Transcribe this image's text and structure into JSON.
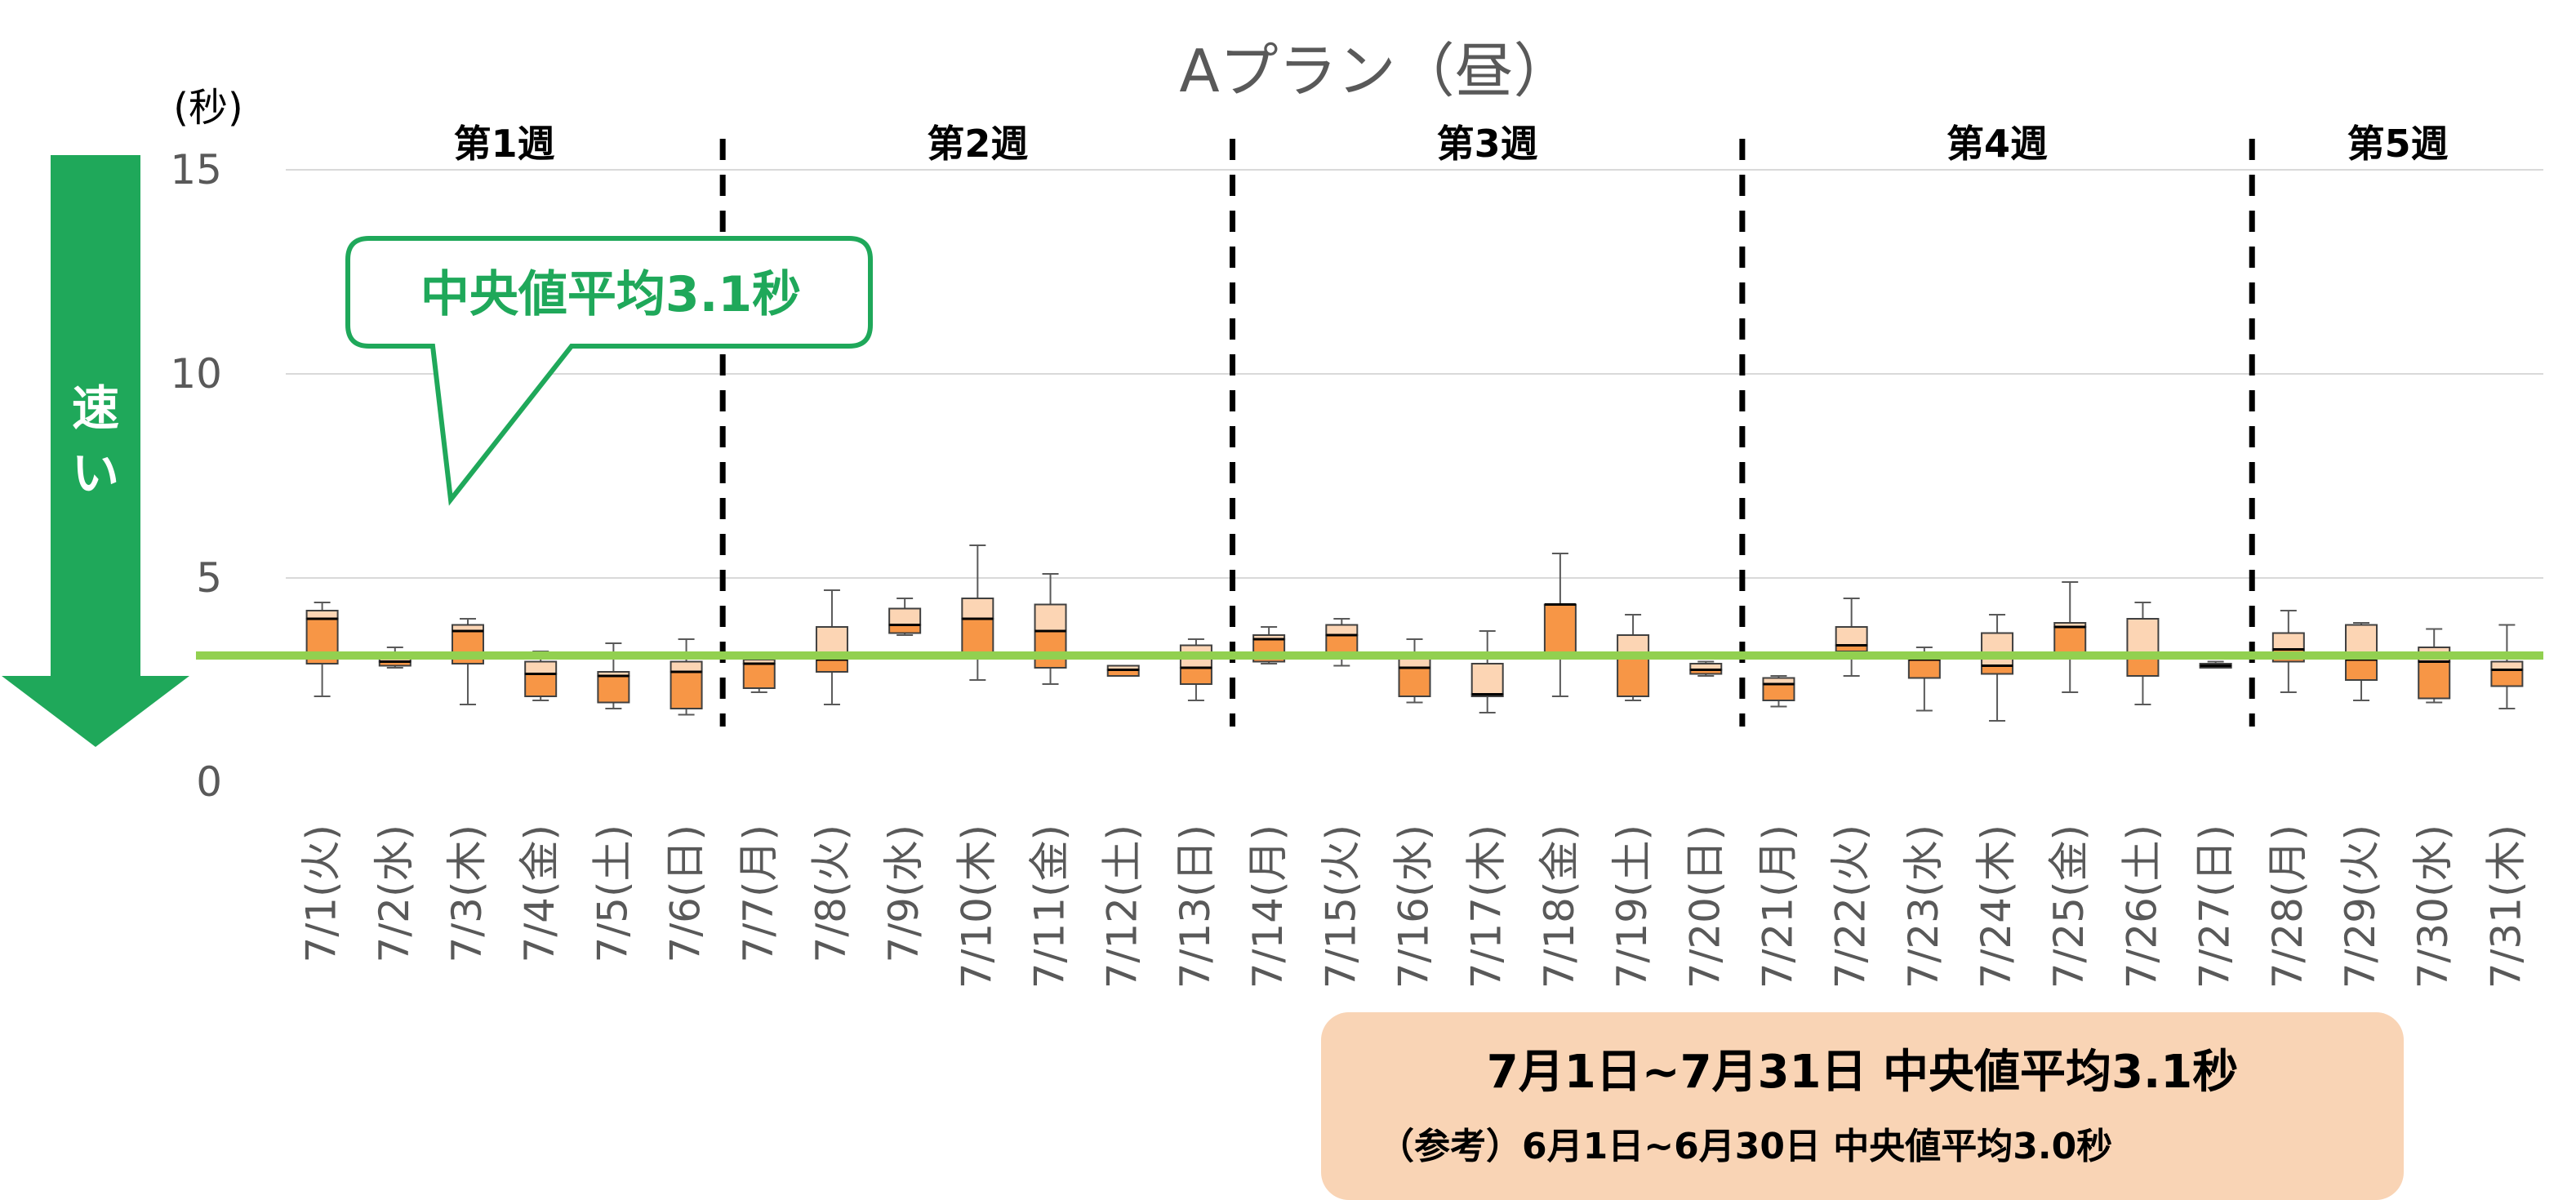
{
  "chart_data": {
    "type": "box",
    "title": "Aプラン（昼）",
    "ylabel": "(秒)",
    "ylim": [
      0,
      15
    ],
    "yticks": [
      0,
      5,
      10,
      15
    ],
    "grid": true,
    "weeks": [
      {
        "label": "第1週",
        "start": 0,
        "end": 5
      },
      {
        "label": "第2週",
        "start": 6,
        "end": 12
      },
      {
        "label": "第3週",
        "start": 13,
        "end": 19
      },
      {
        "label": "第4週",
        "start": 20,
        "end": 26
      },
      {
        "label": "第5週",
        "start": 27,
        "end": 30
      }
    ],
    "categories": [
      "7/1(火)",
      "7/2(水)",
      "7/3(木)",
      "7/4(金)",
      "7/5(土)",
      "7/6(日)",
      "7/7(月)",
      "7/8(火)",
      "7/9(水)",
      "7/10(木)",
      "7/11(金)",
      "7/12(土)",
      "7/13(日)",
      "7/14(月)",
      "7/15(火)",
      "7/16(水)",
      "7/17(木)",
      "7/18(金)",
      "7/19(土)",
      "7/20(日)",
      "7/21(月)",
      "7/22(火)",
      "7/23(水)",
      "7/24(木)",
      "7/25(金)",
      "7/26(土)",
      "7/27(日)",
      "7/28(月)",
      "7/29(火)",
      "7/30(水)",
      "7/31(木)"
    ],
    "boxes": [
      {
        "min": 2.1,
        "q1": 2.9,
        "median": 4.0,
        "q3": 4.2,
        "max": 4.4
      },
      {
        "min": 2.8,
        "q1": 2.85,
        "median": 2.95,
        "q3": 3.15,
        "max": 3.3
      },
      {
        "min": 1.9,
        "q1": 2.9,
        "median": 3.7,
        "q3": 3.85,
        "max": 4.0
      },
      {
        "min": 2.0,
        "q1": 2.1,
        "median": 2.65,
        "q3": 2.95,
        "max": 3.2
      },
      {
        "min": 1.8,
        "q1": 1.95,
        "median": 2.6,
        "q3": 2.7,
        "max": 3.4
      },
      {
        "min": 1.65,
        "q1": 1.8,
        "median": 2.7,
        "q3": 2.95,
        "max": 3.5
      },
      {
        "min": 2.2,
        "q1": 2.3,
        "median": 2.9,
        "q3": 3.0,
        "max": 3.05
      },
      {
        "min": 1.9,
        "q1": 2.7,
        "median": 3.0,
        "q3": 3.8,
        "max": 4.7
      },
      {
        "min": 3.6,
        "q1": 3.65,
        "median": 3.85,
        "q3": 4.25,
        "max": 4.5
      },
      {
        "min": 2.5,
        "q1": 3.1,
        "median": 4.0,
        "q3": 4.5,
        "max": 5.8
      },
      {
        "min": 2.4,
        "q1": 2.8,
        "median": 3.7,
        "q3": 4.35,
        "max": 5.1
      },
      {
        "min": 2.6,
        "q1": 2.6,
        "median": 2.75,
        "q3": 2.85,
        "max": 2.85
      },
      {
        "min": 2.0,
        "q1": 2.4,
        "median": 2.8,
        "q3": 3.35,
        "max": 3.5
      },
      {
        "min": 2.9,
        "q1": 2.95,
        "median": 3.5,
        "q3": 3.6,
        "max": 3.8
      },
      {
        "min": 2.85,
        "q1": 3.15,
        "median": 3.6,
        "q3": 3.85,
        "max": 4.0
      },
      {
        "min": 1.95,
        "q1": 2.1,
        "median": 2.8,
        "q3": 3.1,
        "max": 3.5
      },
      {
        "min": 1.7,
        "q1": 2.1,
        "median": 2.15,
        "q3": 2.9,
        "max": 3.7
      },
      {
        "min": 2.1,
        "q1": 3.1,
        "median": 4.35,
        "q3": 4.35,
        "max": 5.6
      },
      {
        "min": 2.0,
        "q1": 2.1,
        "median": 3.1,
        "q3": 3.6,
        "max": 4.1
      },
      {
        "min": 2.6,
        "q1": 2.65,
        "median": 2.75,
        "q3": 2.9,
        "max": 2.95
      },
      {
        "min": 1.85,
        "q1": 2.0,
        "median": 2.4,
        "q3": 2.55,
        "max": 2.6
      },
      {
        "min": 2.6,
        "q1": 3.2,
        "median": 3.35,
        "q3": 3.8,
        "max": 4.5
      },
      {
        "min": 1.75,
        "q1": 2.55,
        "median": 3.0,
        "q3": 3.15,
        "max": 3.3
      },
      {
        "min": 1.5,
        "q1": 2.65,
        "median": 2.85,
        "q3": 3.65,
        "max": 4.1
      },
      {
        "min": 2.2,
        "q1": 3.1,
        "median": 3.8,
        "q3": 3.9,
        "max": 4.9
      },
      {
        "min": 1.9,
        "q1": 2.6,
        "median": 3.1,
        "q3": 4.0,
        "max": 4.4
      },
      {
        "min": 2.8,
        "q1": 2.8,
        "median": 2.85,
        "q3": 2.9,
        "max": 2.95
      },
      {
        "min": 2.2,
        "q1": 2.95,
        "median": 3.25,
        "q3": 3.65,
        "max": 4.2
      },
      {
        "min": 2.0,
        "q1": 2.5,
        "median": 3.0,
        "q3": 3.85,
        "max": 3.9
      },
      {
        "min": 1.95,
        "q1": 2.05,
        "median": 2.95,
        "q3": 3.3,
        "max": 3.75
      },
      {
        "min": 1.8,
        "q1": 2.35,
        "median": 2.75,
        "q3": 2.95,
        "max": 3.85
      }
    ],
    "reference_line": {
      "value": 3.1,
      "color": "#92d050"
    },
    "colors": {
      "box_lower": "#f79646",
      "box_upper": "#fcd5b4",
      "grid": "#d9d9d9",
      "week_divider": "#000000",
      "callout": "#1fa85a",
      "arrow": "#1fa85a",
      "summary_bg": "#f9d4b5"
    }
  },
  "callout": {
    "text": "中央値平均3.1秒"
  },
  "speed_arrow": {
    "label_line1": "速",
    "label_line2": "い",
    "icon": "down-arrow-icon"
  },
  "summary": {
    "main": "7月1日~7月31日  中央値平均3.1秒",
    "reference": "（参考）6月1日~6月30日  中央値平均3.0秒"
  }
}
